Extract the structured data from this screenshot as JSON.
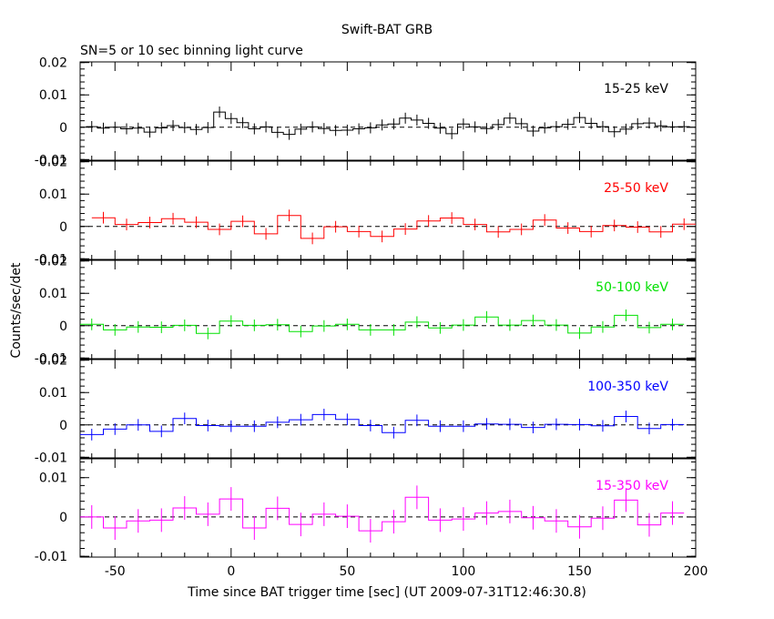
{
  "title": "Swift-BAT GRB",
  "subtitle": "SN=5 or 10 sec binning light curve",
  "xlabel": "Time since BAT trigger time [sec] (UT 2009-07-31T12:46:30.8)",
  "ylabel": "Counts/sec/det",
  "chart_data": {
    "type": "line",
    "title": "Swift-BAT GRB",
    "subtitle": "SN=5 or 10 sec binning light curve",
    "xlabel": "Time since BAT trigger time [sec] (UT 2009-07-31T12:46:30.8)",
    "ylabel": "Counts/sec/det",
    "xlim": [
      -65,
      200
    ],
    "x_ticks": [
      -50,
      0,
      50,
      100,
      150,
      200
    ],
    "y_ticks_top": [
      "0.02",
      "0.01",
      "0",
      "-0.01"
    ],
    "y_ticks_bottom": [
      "0.01",
      "0",
      "-0.01"
    ],
    "grid": false,
    "reference_line": 0,
    "panels": [
      {
        "name": "15-25 keV",
        "color": "#000000",
        "ylim": [
          -0.0102,
          0.0202
        ],
        "x": [
          -60,
          -55,
          -50,
          -45,
          -40,
          -35,
          -30,
          -25,
          -20,
          -15,
          -10,
          -5,
          0,
          5,
          10,
          15,
          20,
          25,
          30,
          35,
          40,
          45,
          50,
          55,
          60,
          65,
          70,
          75,
          80,
          85,
          90,
          95,
          100,
          105,
          110,
          115,
          120,
          125,
          130,
          135,
          140,
          145,
          150,
          155,
          160,
          165,
          170,
          175,
          180,
          185,
          190,
          195
        ],
        "y": [
          0.0002,
          -0.0003,
          0,
          -0.0005,
          -0.0003,
          -0.0015,
          -0.0002,
          0.0005,
          -0.0001,
          -0.0007,
          -0.0001,
          0.0047,
          0.0027,
          0.0014,
          -0.0005,
          0.0001,
          -0.0016,
          -0.0022,
          -0.0006,
          0.0001,
          -0.0004,
          -0.001,
          -0.0009,
          -0.0005,
          -0.0002,
          0.0007,
          0.001,
          0.0028,
          0.0022,
          0.0012,
          -0.0003,
          -0.002,
          0.001,
          0.0001,
          -0.0004,
          0.0008,
          0.0028,
          0.0011,
          -0.0012,
          -0.0002,
          0.0002,
          0.0009,
          0.003,
          0.0012,
          0.0002,
          -0.0014,
          -0.0006,
          0.0011,
          0.0013,
          0.0004,
          0.0001,
          0.0002
        ],
        "err": [
          0.0017,
          0.0017,
          0.0017,
          0.0017,
          0.0017,
          0.0017,
          0.0017,
          0.0017,
          0.0017,
          0.0017,
          0.0017,
          0.0017,
          0.0017,
          0.0017,
          0.0017,
          0.0017,
          0.0017,
          0.0017,
          0.0017,
          0.0017,
          0.0017,
          0.0017,
          0.0017,
          0.0017,
          0.0017,
          0.0017,
          0.0017,
          0.0017,
          0.0017,
          0.0017,
          0.0017,
          0.0017,
          0.0017,
          0.0017,
          0.0017,
          0.0017,
          0.0017,
          0.0017,
          0.0017,
          0.0017,
          0.0017,
          0.0017,
          0.0017,
          0.0017,
          0.0017,
          0.0017,
          0.0017,
          0.0017,
          0.0017,
          0.0017,
          0.0017,
          0.0017
        ]
      },
      {
        "name": "25-50 keV",
        "color": "#ff0000",
        "ylim": [
          -0.0102,
          0.0202
        ],
        "x": [
          -55,
          -45,
          -35,
          -25,
          -15,
          -5,
          5,
          15,
          25,
          35,
          45,
          55,
          65,
          75,
          85,
          95,
          105,
          115,
          125,
          135,
          145,
          155,
          165,
          175,
          185,
          195
        ],
        "y": [
          0.0027,
          0.0006,
          0.0012,
          0.0024,
          0.0013,
          -0.0009,
          0.0016,
          -0.0023,
          0.0034,
          -0.0037,
          -0.0001,
          -0.0016,
          -0.0031,
          -0.0008,
          0.0017,
          0.0026,
          0.0006,
          -0.0017,
          -0.0009,
          0.002,
          -0.0005,
          -0.0016,
          0.0003,
          -0.0002,
          -0.0017,
          0.0007
        ],
        "err": [
          0.0018,
          0.0018,
          0.0018,
          0.0018,
          0.0018,
          0.0018,
          0.0018,
          0.0018,
          0.0018,
          0.0018,
          0.0018,
          0.0018,
          0.0018,
          0.0018,
          0.0018,
          0.0018,
          0.0018,
          0.0018,
          0.0018,
          0.0018,
          0.0018,
          0.0018,
          0.0018,
          0.0018,
          0.0018,
          0.0018
        ]
      },
      {
        "name": "50-100 keV",
        "color": "#00e000",
        "ylim": [
          -0.0102,
          0.0202
        ],
        "x": [
          -60,
          -50,
          -40,
          -30,
          -20,
          -10,
          0,
          10,
          20,
          30,
          40,
          50,
          60,
          70,
          80,
          90,
          100,
          110,
          120,
          130,
          140,
          150,
          160,
          170,
          180,
          190
        ],
        "y": [
          0.0004,
          -0.0013,
          -0.0004,
          -0.0005,
          0.0001,
          -0.0024,
          0.0014,
          0.0001,
          0.0003,
          -0.0018,
          -0.0001,
          0.0004,
          -0.0013,
          -0.0013,
          0.0011,
          -0.0007,
          0.0002,
          0.0027,
          0.0002,
          0.0016,
          0.0002,
          -0.0023,
          -0.0004,
          0.0032,
          -0.0006,
          0.0004
        ],
        "err": [
          0.0018,
          0.0018,
          0.0018,
          0.0018,
          0.0018,
          0.0018,
          0.0018,
          0.0018,
          0.0018,
          0.0018,
          0.0018,
          0.0018,
          0.0018,
          0.0018,
          0.0018,
          0.0018,
          0.0018,
          0.0018,
          0.0018,
          0.0018,
          0.0018,
          0.0018,
          0.0018,
          0.0018,
          0.0018,
          0.0018
        ]
      },
      {
        "name": "100-350 keV",
        "color": "#0000ff",
        "ylim": [
          -0.0102,
          0.0202
        ],
        "x": [
          -60,
          -50,
          -40,
          -30,
          -20,
          -10,
          0,
          10,
          20,
          30,
          40,
          50,
          60,
          70,
          80,
          90,
          100,
          110,
          120,
          130,
          140,
          150,
          160,
          170,
          180,
          190
        ],
        "y": [
          -0.003,
          -0.0013,
          0.0,
          -0.002,
          0.002,
          -0.0002,
          -0.0004,
          -0.0004,
          0.0008,
          0.0016,
          0.0032,
          0.0017,
          -0.0002,
          -0.0024,
          0.0014,
          -0.0004,
          -0.0004,
          0.0003,
          0.0002,
          -0.0008,
          0.0002,
          0.0001,
          -0.0003,
          0.0026,
          -0.0011,
          0.0001
        ],
        "err": [
          0.0018,
          0.0018,
          0.0018,
          0.0018,
          0.0018,
          0.0018,
          0.0018,
          0.0018,
          0.0018,
          0.0018,
          0.0018,
          0.0018,
          0.0018,
          0.0018,
          0.0018,
          0.0018,
          0.0018,
          0.0018,
          0.0018,
          0.0018,
          0.0018,
          0.0018,
          0.0018,
          0.0018,
          0.0018,
          0.0018
        ]
      },
      {
        "name": "15-350 keV",
        "color": "#ff00ff",
        "ylim": [
          -0.0102,
          0.0148
        ],
        "x": [
          -60,
          -50,
          -40,
          -30,
          -20,
          -10,
          0,
          10,
          20,
          30,
          40,
          50,
          60,
          70,
          80,
          90,
          100,
          110,
          120,
          130,
          140,
          150,
          160,
          170,
          180,
          190
        ],
        "y": [
          0.0,
          -0.0028,
          -0.001,
          -0.0008,
          0.0023,
          0.0007,
          0.0046,
          -0.0028,
          0.0022,
          -0.0019,
          0.0007,
          0.0002,
          -0.0035,
          -0.0012,
          0.005,
          -0.0008,
          -0.0005,
          0.001,
          0.0014,
          -0.0002,
          -0.001,
          -0.0025,
          -0.0003,
          0.0043,
          -0.002,
          0.001
        ],
        "err": [
          0.003,
          0.003,
          0.003,
          0.003,
          0.003,
          0.003,
          0.003,
          0.003,
          0.003,
          0.003,
          0.003,
          0.003,
          0.003,
          0.003,
          0.003,
          0.003,
          0.003,
          0.003,
          0.003,
          0.003,
          0.003,
          0.003,
          0.003,
          0.003,
          0.003,
          0.003
        ]
      }
    ]
  }
}
